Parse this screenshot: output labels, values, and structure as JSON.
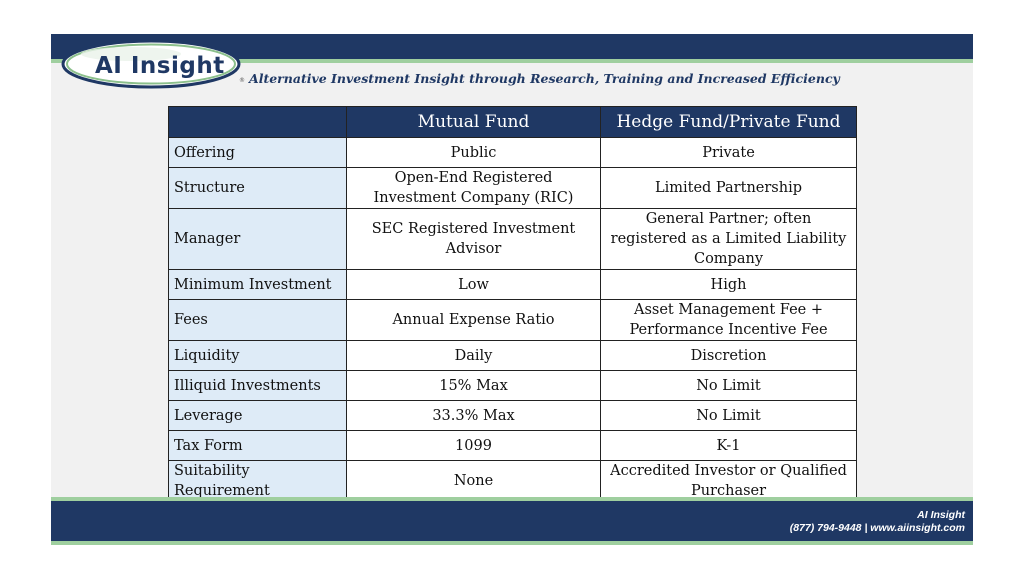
{
  "header": {
    "logo_text": "AI Insight",
    "logo_reg": "®",
    "tagline": "Alternative Investment Insight through Research, Training and Increased Efficiency"
  },
  "table": {
    "columns": [
      "",
      "Mutual Fund",
      "Hedge Fund/Private Fund"
    ],
    "rows": [
      {
        "label": "Offering",
        "mutual": "Public",
        "hedge": "Private"
      },
      {
        "label": "Structure",
        "mutual": "Open-End Registered Investment Company (RIC)",
        "hedge": "Limited Partnership"
      },
      {
        "label": "Manager",
        "mutual": "SEC Registered Investment Advisor",
        "hedge": "General Partner; often registered as a Limited Liability Company"
      },
      {
        "label": "Minimum Investment",
        "mutual": "Low",
        "hedge": "High"
      },
      {
        "label": "Fees",
        "mutual": "Annual Expense Ratio",
        "hedge": "Asset Management Fee + Performance Incentive Fee"
      },
      {
        "label": "Liquidity",
        "mutual": "Daily",
        "hedge": "Discretion"
      },
      {
        "label": "Illiquid Investments",
        "mutual": "15% Max",
        "hedge": "No Limit"
      },
      {
        "label": "Leverage",
        "mutual": "33.3% Max",
        "hedge": "No Limit"
      },
      {
        "label": "Tax Form",
        "mutual": "1099",
        "hedge": "K-1"
      },
      {
        "label": "Suitability Requirement",
        "mutual": "None",
        "hedge": "Accredited Investor or Qualified Purchaser"
      }
    ]
  },
  "footer": {
    "company": "AI Insight",
    "contact": "(877) 794-9448 | www.aiinsight.com"
  },
  "colors": {
    "navy": "#1f3864",
    "green_line": "#9fcf9f",
    "row_label_bg": "#deebf7"
  }
}
